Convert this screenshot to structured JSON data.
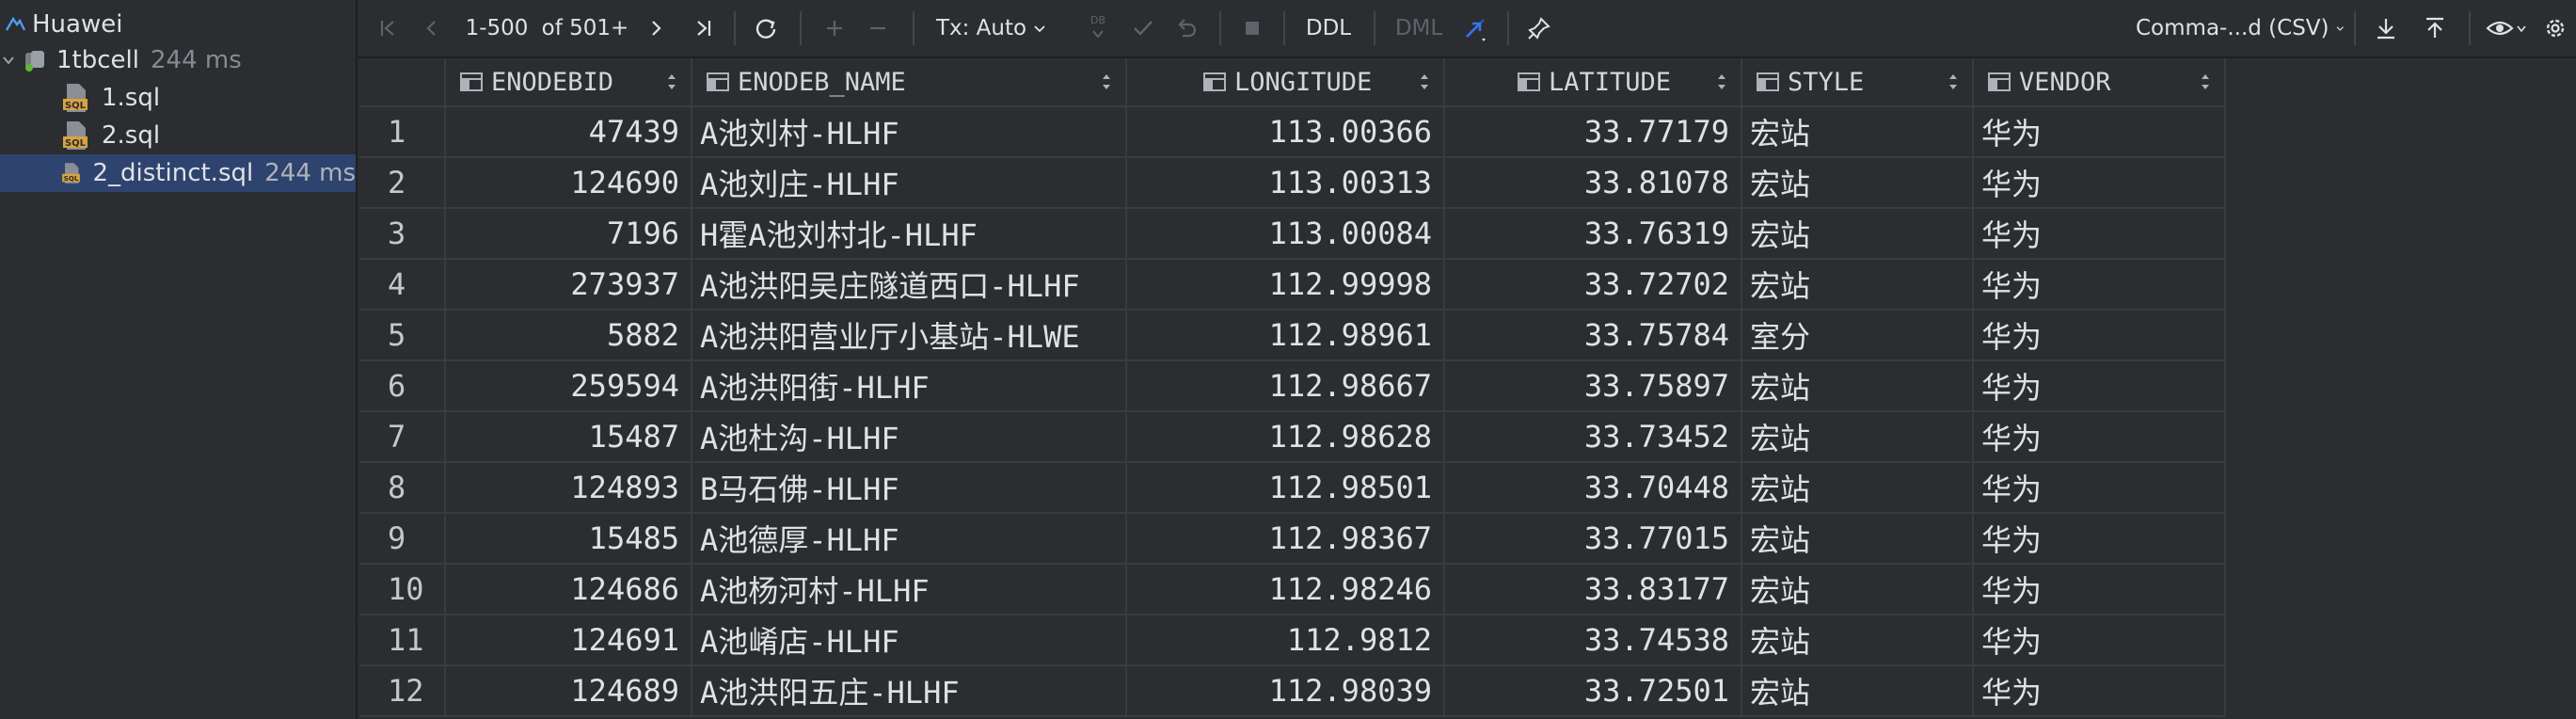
{
  "tree": {
    "root_label": "Huawei",
    "connection": {
      "label": "1tbcell",
      "time": "244 ms"
    },
    "files": [
      {
        "label": "1.sql",
        "time": ""
      },
      {
        "label": "2.sql",
        "time": ""
      },
      {
        "label": "2_distinct.sql",
        "time": "244 ms"
      }
    ]
  },
  "toolbar": {
    "page_range": "1-500",
    "page_total": "of 501+",
    "tx_mode": "Tx: Auto",
    "db_badge": "DB",
    "ddl_label": "DDL",
    "dml_label": "DML",
    "export_format": "Comma-...d (CSV)"
  },
  "grid": {
    "columns": [
      "ENODEBID",
      "ENODEB_NAME",
      "LONGITUDE",
      "LATITUDE",
      "STYLE",
      "VENDOR"
    ],
    "rows": [
      {
        "n": "1",
        "id": "47439",
        "name": "A池刘村-HLHF",
        "lon": "113.00366",
        "lat": "33.77179",
        "style": "宏站",
        "vendor": "华为"
      },
      {
        "n": "2",
        "id": "124690",
        "name": "A池刘庄-HLHF",
        "lon": "113.00313",
        "lat": "33.81078",
        "style": "宏站",
        "vendor": "华为"
      },
      {
        "n": "3",
        "id": "7196",
        "name": "H霍A池刘村北-HLHF",
        "lon": "113.00084",
        "lat": "33.76319",
        "style": "宏站",
        "vendor": "华为"
      },
      {
        "n": "4",
        "id": "273937",
        "name": "A池洪阳吴庄隧道西口-HLHF",
        "lon": "112.99998",
        "lat": "33.72702",
        "style": "宏站",
        "vendor": "华为"
      },
      {
        "n": "5",
        "id": "5882",
        "name": "A池洪阳营业厅小基站-HLWE",
        "lon": "112.98961",
        "lat": "33.75784",
        "style": "室分",
        "vendor": "华为"
      },
      {
        "n": "6",
        "id": "259594",
        "name": "A池洪阳街-HLHF",
        "lon": "112.98667",
        "lat": "33.75897",
        "style": "宏站",
        "vendor": "华为"
      },
      {
        "n": "7",
        "id": "15487",
        "name": "A池杜沟-HLHF",
        "lon": "112.98628",
        "lat": "33.73452",
        "style": "宏站",
        "vendor": "华为"
      },
      {
        "n": "8",
        "id": "124893",
        "name": "B马石佛-HLHF",
        "lon": "112.98501",
        "lat": "33.70448",
        "style": "宏站",
        "vendor": "华为"
      },
      {
        "n": "9",
        "id": "15485",
        "name": "A池德厚-HLHF",
        "lon": "112.98367",
        "lat": "33.77015",
        "style": "宏站",
        "vendor": "华为"
      },
      {
        "n": "10",
        "id": "124686",
        "name": "A池杨河村-HLHF",
        "lon": "112.98246",
        "lat": "33.83177",
        "style": "宏站",
        "vendor": "华为"
      },
      {
        "n": "11",
        "id": "124691",
        "name": "A池崤店-HLHF",
        "lon": "112.9812",
        "lat": "33.74538",
        "style": "宏站",
        "vendor": "华为"
      },
      {
        "n": "12",
        "id": "124689",
        "name": "A池洪阳五庄-HLHF",
        "lon": "112.98039",
        "lat": "33.72501",
        "style": "宏站",
        "vendor": "华为"
      }
    ]
  },
  "colors": {
    "accent": "#3574f0",
    "selection": "#2e436e",
    "panel": "#2b2d30"
  }
}
